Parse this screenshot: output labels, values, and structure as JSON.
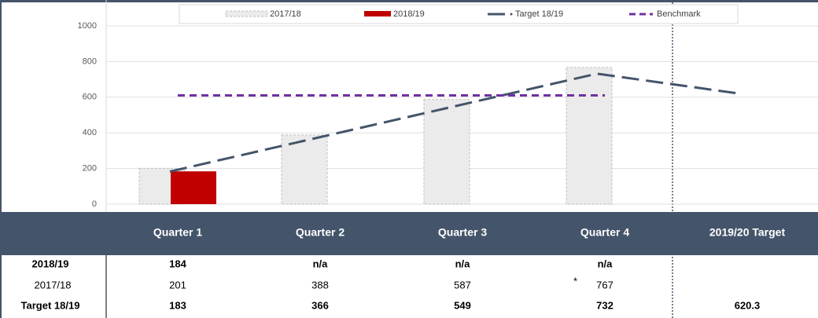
{
  "chart_data": {
    "type": "bar",
    "categories": [
      "Quarter 1",
      "Quarter 2",
      "Quarter 3",
      "Quarter 4",
      "2019/20 Target"
    ],
    "series": [
      {
        "name": "2017/18",
        "type": "bar",
        "color": "#ebebeb",
        "values": [
          201,
          388,
          587,
          767,
          null
        ]
      },
      {
        "name": "2018/19",
        "type": "bar",
        "color": "#c00000",
        "values": [
          184,
          null,
          null,
          null,
          null
        ]
      },
      {
        "name": "Target 18/19",
        "type": "line",
        "color": "#44546a",
        "values": [
          183,
          366,
          549,
          732,
          620.3
        ]
      },
      {
        "name": "Benchmark",
        "type": "line",
        "color": "#7030a0",
        "values": [
          610,
          610,
          610,
          610,
          null
        ]
      }
    ],
    "ylim": [
      0,
      1000
    ],
    "yticks": [
      0,
      200,
      400,
      600,
      800,
      1000
    ],
    "grid": true,
    "legend": "top"
  },
  "table": {
    "rows": [
      {
        "label": "2018/19",
        "cells": [
          "184",
          "n/a",
          "n/a",
          "n/a"
        ]
      },
      {
        "label": "2017/18",
        "cells": [
          "201",
          "388",
          "587",
          "767"
        ],
        "note": "*"
      },
      {
        "label": "Target 18/19",
        "cells": [
          "183",
          "366",
          "549",
          "732",
          "620.3"
        ]
      }
    ]
  }
}
